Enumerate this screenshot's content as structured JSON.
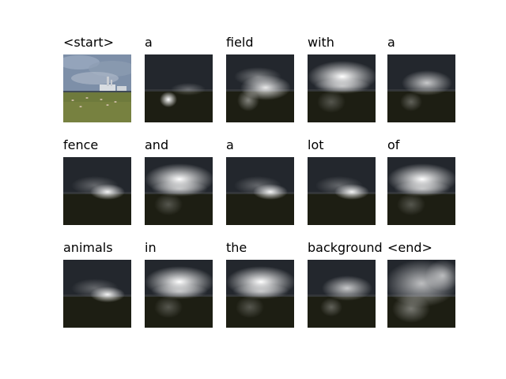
{
  "words": [
    {
      "text": "<start>",
      "kind": "original"
    },
    {
      "text": "a",
      "kind": "attn",
      "attention": "small-bottom-left"
    },
    {
      "text": "field",
      "kind": "attn",
      "attention": "mid-center"
    },
    {
      "text": "with",
      "kind": "attn",
      "attention": "upper-wide"
    },
    {
      "text": "a",
      "kind": "attn",
      "attention": "center-soft"
    },
    {
      "text": "fence",
      "kind": "attn",
      "attention": "center-small"
    },
    {
      "text": "and",
      "kind": "attn",
      "attention": "upper-wide"
    },
    {
      "text": "a",
      "kind": "attn",
      "attention": "center-small"
    },
    {
      "text": "lot",
      "kind": "attn",
      "attention": "center-small"
    },
    {
      "text": "of",
      "kind": "attn",
      "attention": "upper-wide"
    },
    {
      "text": "animals",
      "kind": "attn",
      "attention": "center-small"
    },
    {
      "text": "in",
      "kind": "attn",
      "attention": "upper-wide"
    },
    {
      "text": "the",
      "kind": "attn",
      "attention": "upper-wide"
    },
    {
      "text": "background",
      "kind": "attn",
      "attention": "center-soft"
    },
    {
      "text": "<end>",
      "kind": "attn",
      "attention": "diffuse"
    }
  ],
  "colors": {
    "sky": "#7d8fa8",
    "grass": "#6e7a3c",
    "dark_sky": "#23272d",
    "dark_ground": "#1d1e13",
    "highlight": "#ffffff"
  }
}
